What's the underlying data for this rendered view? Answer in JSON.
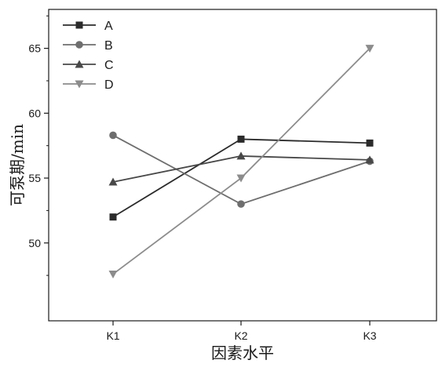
{
  "chart_data": {
    "type": "line",
    "title": "",
    "xlabel": "因素水平",
    "ylabel": "可泵期/min",
    "categories": [
      "K1",
      "K2",
      "K3"
    ],
    "ylim": [
      44,
      68
    ],
    "yticks": [
      50,
      55,
      60,
      65
    ],
    "grid": false,
    "legend_position": "top-left",
    "series": [
      {
        "name": "A",
        "values": [
          52.0,
          58.0,
          57.7
        ],
        "color": "#2b2b2b",
        "marker": "square"
      },
      {
        "name": "B",
        "values": [
          58.3,
          53.0,
          56.3
        ],
        "color": "#6e6e6e",
        "marker": "circle"
      },
      {
        "name": "C",
        "values": [
          54.7,
          56.7,
          56.4
        ],
        "color": "#484848",
        "marker": "triangle-up"
      },
      {
        "name": "D",
        "values": [
          47.6,
          55.0,
          65.0
        ],
        "color": "#8c8c8c",
        "marker": "triangle-down"
      }
    ]
  }
}
